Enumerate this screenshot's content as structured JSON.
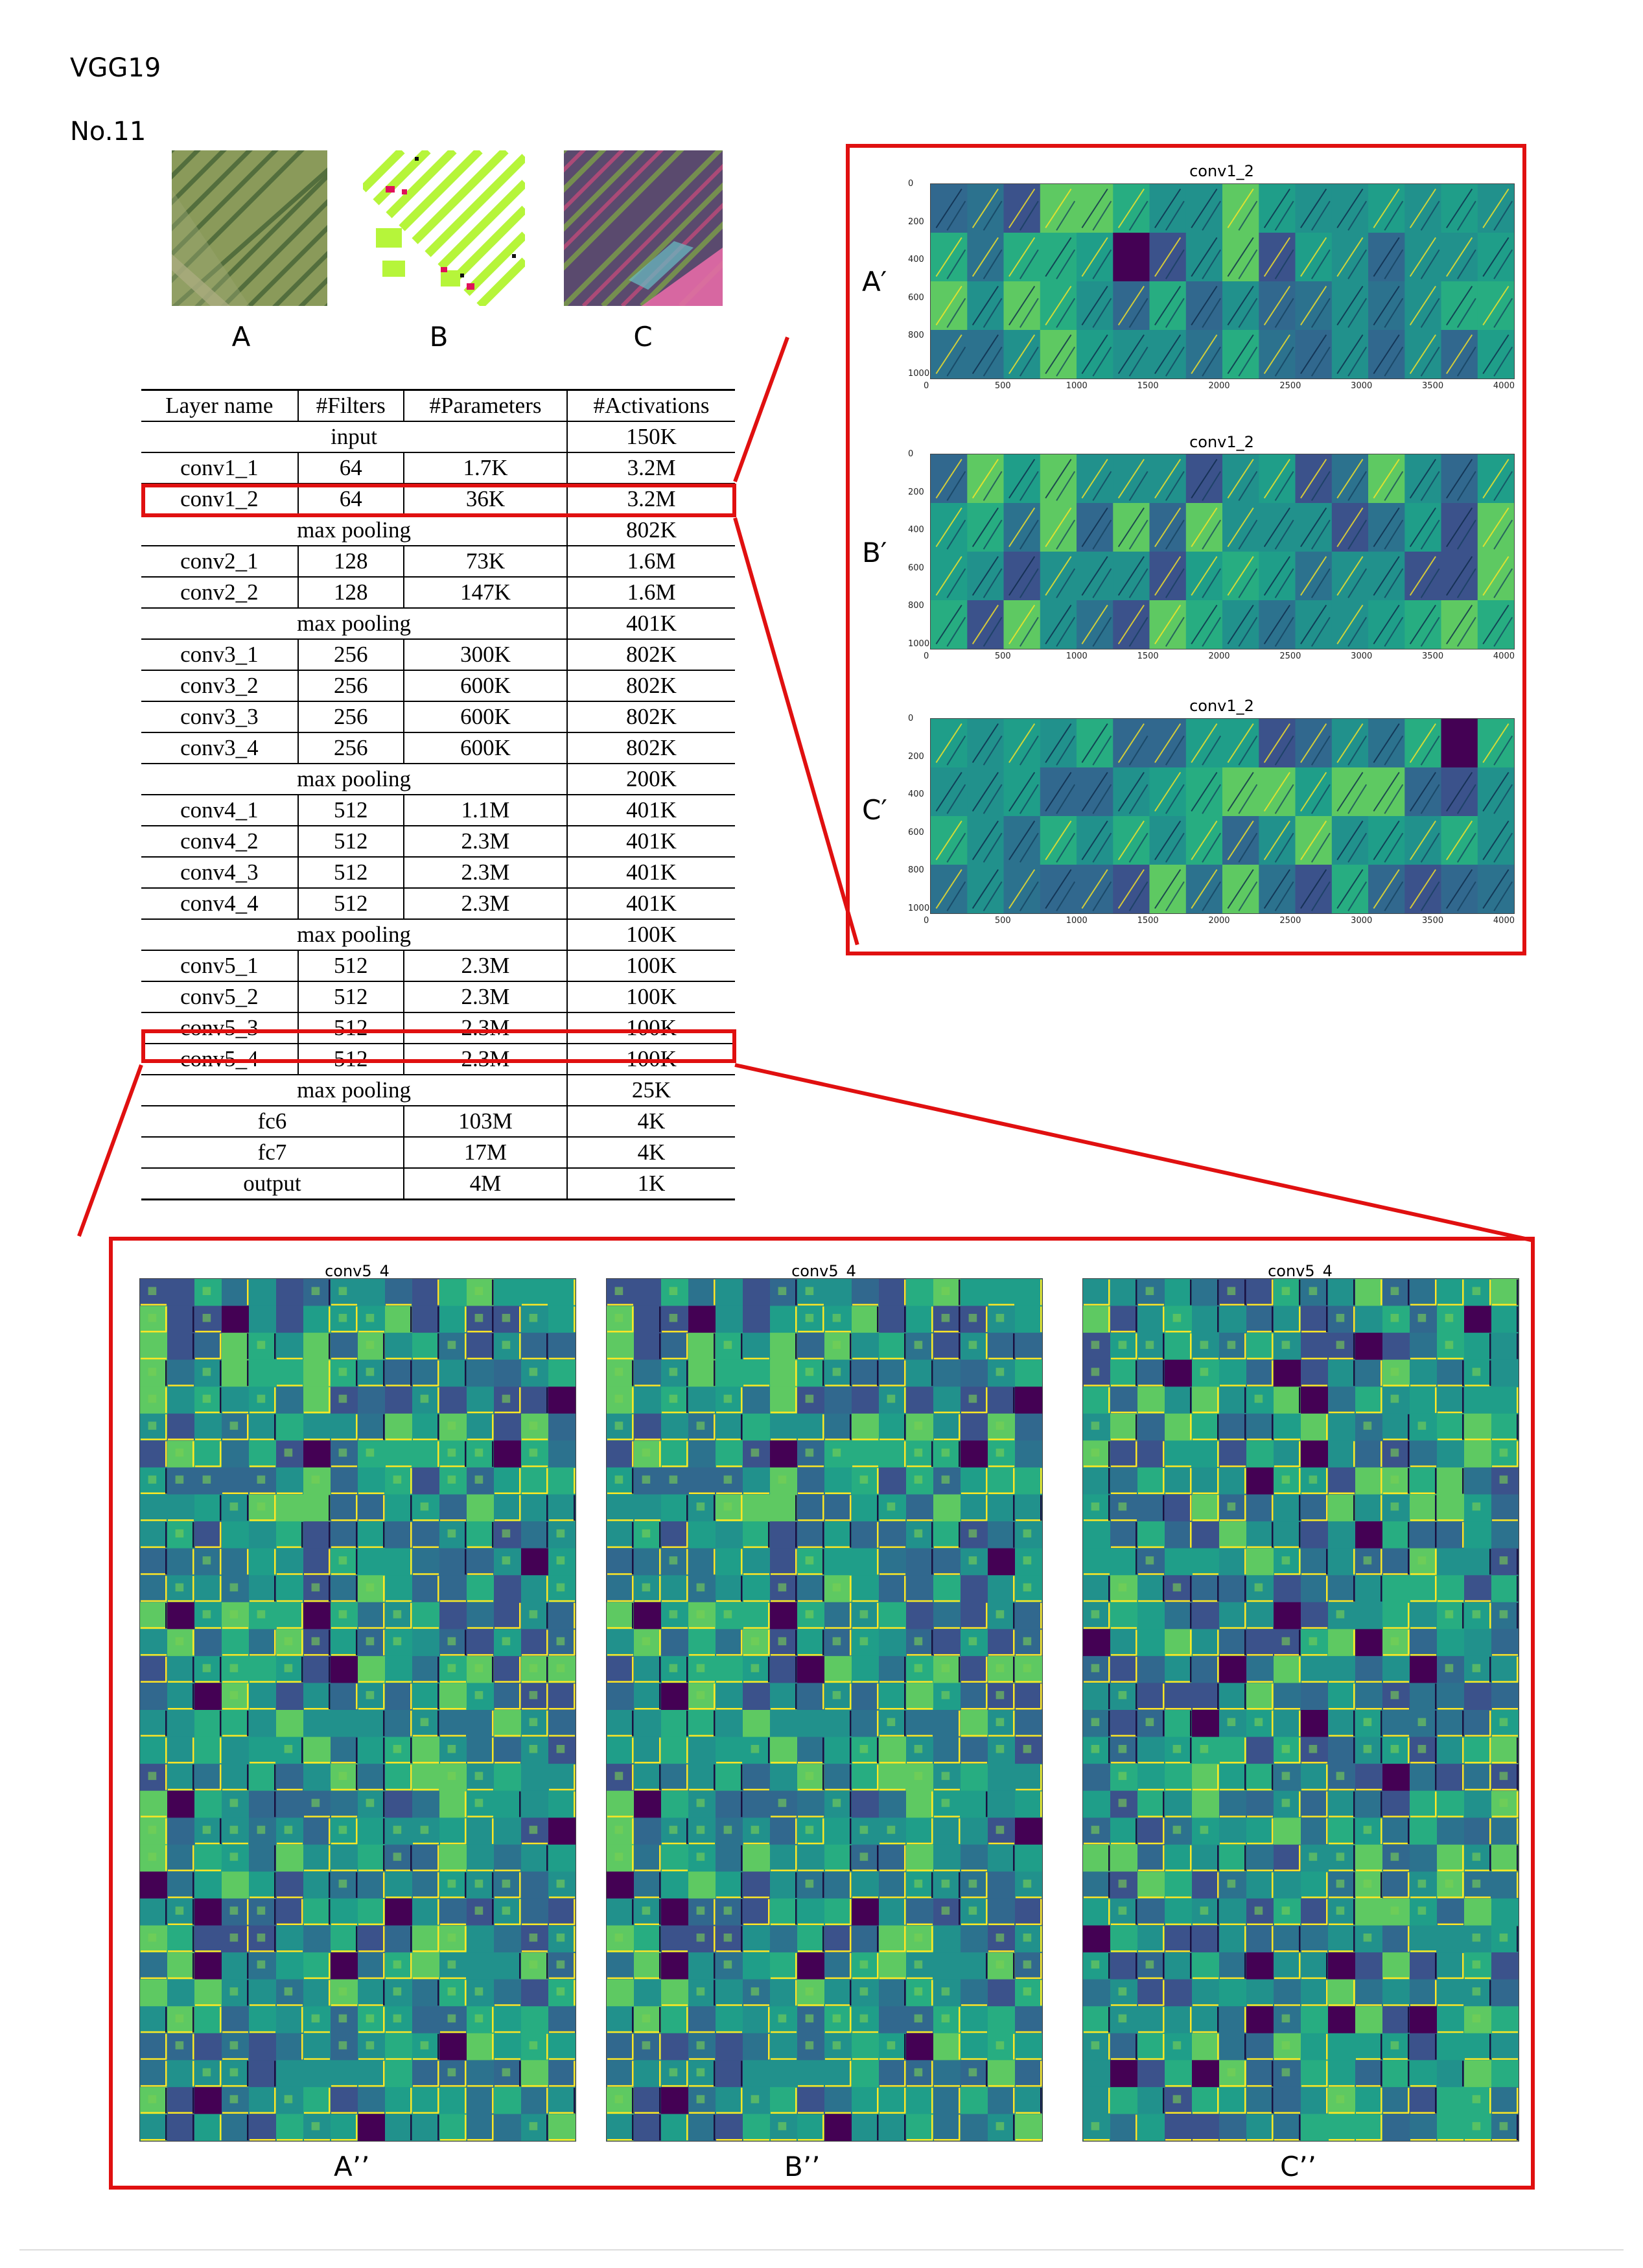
{
  "header": {
    "model": "VGG19",
    "number": "No.11"
  },
  "images": [
    {
      "label": "A",
      "kind": "aerial-rgb"
    },
    {
      "label": "B",
      "kind": "segmentation-mask"
    },
    {
      "label": "C",
      "kind": "false-color"
    }
  ],
  "table": {
    "columns": [
      "Layer name",
      "#Filters",
      "#Parameters",
      "#Activations"
    ],
    "rows": [
      {
        "type": "span",
        "name": "input",
        "activations": "150K"
      },
      {
        "type": "layer",
        "name": "conv1_1",
        "filters": "64",
        "params": "1.7K",
        "activations": "3.2M"
      },
      {
        "type": "layer",
        "name": "conv1_2",
        "filters": "64",
        "params": "36K",
        "activations": "3.2M",
        "highlight": true
      },
      {
        "type": "span",
        "name": "max pooling",
        "activations": "802K"
      },
      {
        "type": "layer",
        "name": "conv2_1",
        "filters": "128",
        "params": "73K",
        "activations": "1.6M"
      },
      {
        "type": "layer",
        "name": "conv2_2",
        "filters": "128",
        "params": "147K",
        "activations": "1.6M"
      },
      {
        "type": "span",
        "name": "max pooling",
        "activations": "401K"
      },
      {
        "type": "layer",
        "name": "conv3_1",
        "filters": "256",
        "params": "300K",
        "activations": "802K"
      },
      {
        "type": "layer",
        "name": "conv3_2",
        "filters": "256",
        "params": "600K",
        "activations": "802K"
      },
      {
        "type": "layer",
        "name": "conv3_3",
        "filters": "256",
        "params": "600K",
        "activations": "802K"
      },
      {
        "type": "layer",
        "name": "conv3_4",
        "filters": "256",
        "params": "600K",
        "activations": "802K"
      },
      {
        "type": "span",
        "name": "max pooling",
        "activations": "200K"
      },
      {
        "type": "layer",
        "name": "conv4_1",
        "filters": "512",
        "params": "1.1M",
        "activations": "401K"
      },
      {
        "type": "layer",
        "name": "conv4_2",
        "filters": "512",
        "params": "2.3M",
        "activations": "401K"
      },
      {
        "type": "layer",
        "name": "conv4_3",
        "filters": "512",
        "params": "2.3M",
        "activations": "401K"
      },
      {
        "type": "layer",
        "name": "conv4_4",
        "filters": "512",
        "params": "2.3M",
        "activations": "401K"
      },
      {
        "type": "span",
        "name": "max pooling",
        "activations": "100K"
      },
      {
        "type": "layer",
        "name": "conv5_1",
        "filters": "512",
        "params": "2.3M",
        "activations": "100K"
      },
      {
        "type": "layer",
        "name": "conv5_2",
        "filters": "512",
        "params": "2.3M",
        "activations": "100K"
      },
      {
        "type": "layer",
        "name": "conv5_3",
        "filters": "512",
        "params": "2.3M",
        "activations": "100K"
      },
      {
        "type": "layer",
        "name": "conv5_4",
        "filters": "512",
        "params": "2.3M",
        "activations": "100K",
        "highlight": true
      },
      {
        "type": "span",
        "name": "max pooling",
        "activations": "25K"
      },
      {
        "type": "fc",
        "name": "fc6",
        "params": "103M",
        "activations": "4K"
      },
      {
        "type": "fc",
        "name": "fc7",
        "params": "17M",
        "activations": "4K"
      },
      {
        "type": "fc",
        "name": "output",
        "params": "4M",
        "activations": "1K"
      }
    ]
  },
  "conv1_panels": {
    "title": "conv1_2",
    "x_ticks": [
      "0",
      "500",
      "1000",
      "1500",
      "2000",
      "2500",
      "3000",
      "3500",
      "4000"
    ],
    "y_ticks": [
      "0",
      "200",
      "400",
      "600",
      "800",
      "1000"
    ],
    "items": [
      {
        "label": "A′"
      },
      {
        "label": "B′"
      },
      {
        "label": "C′"
      }
    ]
  },
  "conv5_panels": {
    "title": "conv5_4",
    "items": [
      {
        "label": "A’’"
      },
      {
        "label": "B’’"
      },
      {
        "label": "C’’"
      }
    ]
  },
  "colors": {
    "highlight": "#e01010",
    "viridis_dark": "#440154",
    "viridis_mid": "#21918c",
    "viridis_yellow": "#fde725"
  }
}
